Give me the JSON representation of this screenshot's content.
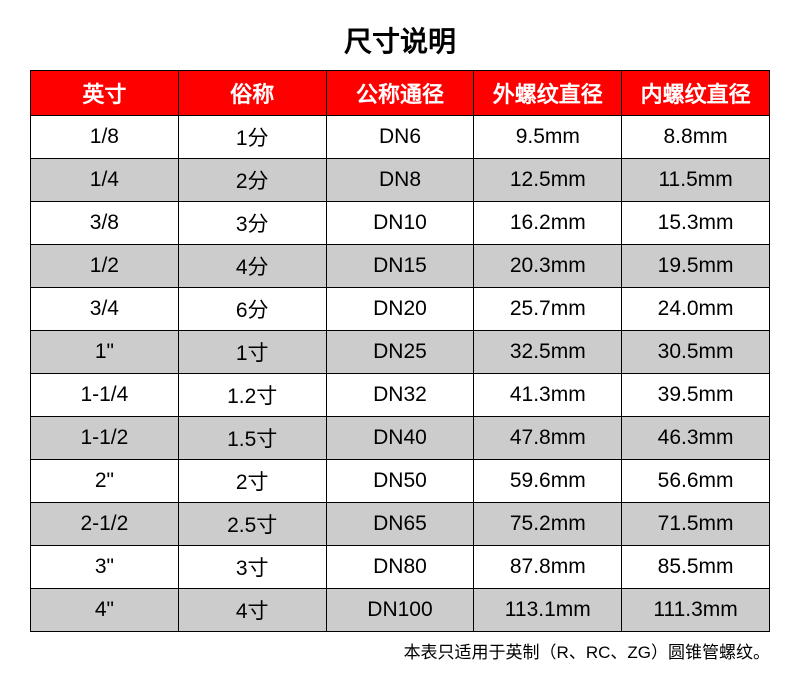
{
  "title": "尺寸说明",
  "columns": [
    "英寸",
    "俗称",
    "公称通径",
    "外螺纹直径",
    "内螺纹直径"
  ],
  "rows": [
    [
      "1/8",
      "1分",
      "DN6",
      "9.5mm",
      "8.8mm"
    ],
    [
      "1/4",
      "2分",
      "DN8",
      "12.5mm",
      "11.5mm"
    ],
    [
      "3/8",
      "3分",
      "DN10",
      "16.2mm",
      "15.3mm"
    ],
    [
      "1/2",
      "4分",
      "DN15",
      "20.3mm",
      "19.5mm"
    ],
    [
      "3/4",
      "6分",
      "DN20",
      "25.7mm",
      "24.0mm"
    ],
    [
      "1\"",
      "1寸",
      "DN25",
      "32.5mm",
      "30.5mm"
    ],
    [
      "1-1/4",
      "1.2寸",
      "DN32",
      "41.3mm",
      "39.5mm"
    ],
    [
      "1-1/2",
      "1.5寸",
      "DN40",
      "47.8mm",
      "46.3mm"
    ],
    [
      "2\"",
      "2寸",
      "DN50",
      "59.6mm",
      "56.6mm"
    ],
    [
      "2-1/2",
      "2.5寸",
      "DN65",
      "75.2mm",
      "71.5mm"
    ],
    [
      "3\"",
      "3寸",
      "DN80",
      "87.8mm",
      "85.5mm"
    ],
    [
      "4\"",
      "4寸",
      "DN100",
      "113.1mm",
      "111.3mm"
    ]
  ],
  "footnote": "本表只适用于英制（R、RC、ZG）圆锥管螺纹。",
  "style": {
    "header_bg": "#ff0000",
    "header_fg": "#ffffff",
    "row_odd_bg": "#ffffff",
    "row_even_bg": "#cccccc",
    "border_color": "#000000",
    "title_fontsize": 28,
    "header_fontsize": 22,
    "cell_fontsize": 21,
    "footnote_fontsize": 17
  }
}
